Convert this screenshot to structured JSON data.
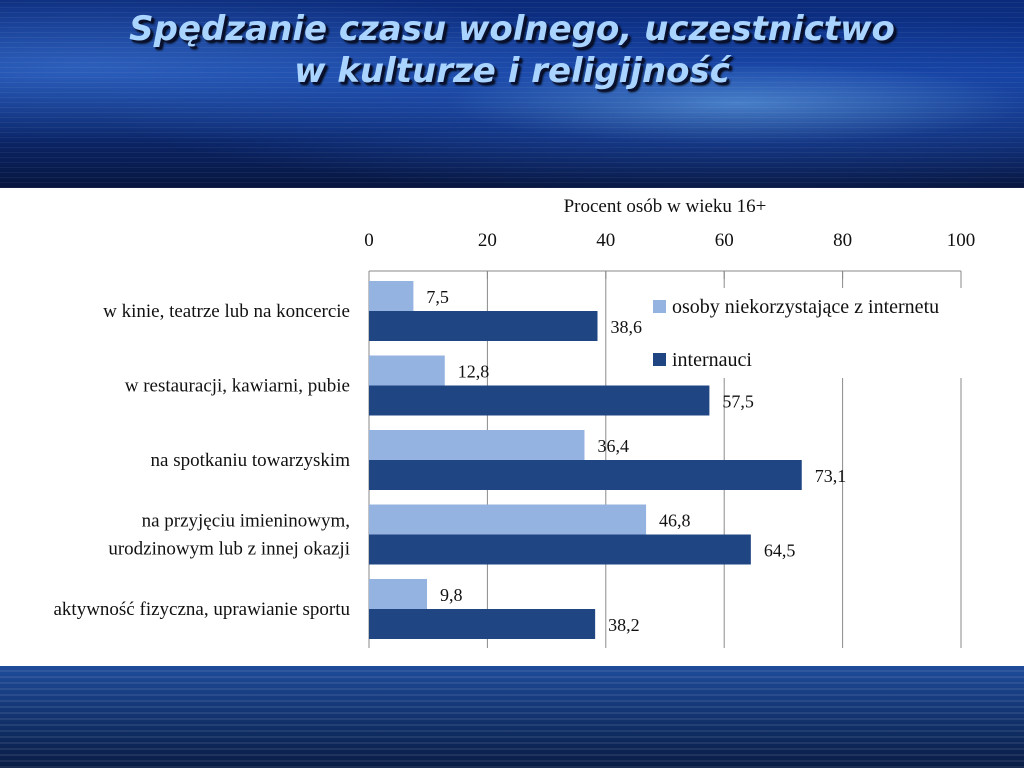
{
  "slide": {
    "title_line1": "Spędzanie czasu wolnego, uczestnictwo",
    "title_line2": "w kulturze i religijność"
  },
  "chart_data": {
    "type": "bar",
    "orientation": "horizontal",
    "title": "Procent osób w wieku 16+",
    "xlim": [
      0,
      100
    ],
    "ticks": [
      0,
      20,
      40,
      60,
      80,
      100
    ],
    "grid": true,
    "legend_position": "top-right",
    "categories": [
      [
        "w kinie, teatrze lub na koncercie"
      ],
      [
        "w restauracji, kawiarni, pubie"
      ],
      [
        "na spotkaniu towarzyskim"
      ],
      [
        "na przyjęciu imieninowym,",
        "urodzinowym lub z innej okazji"
      ],
      [
        "aktywność fizyczna, uprawianie sportu"
      ]
    ],
    "series": [
      {
        "name": "osoby niekorzystające z internetu",
        "color": "#95b3e1",
        "values": [
          7.5,
          12.8,
          36.4,
          46.8,
          9.8
        ],
        "labels": [
          "7,5",
          "12,8",
          "36,4",
          "46,8",
          "9,8"
        ]
      },
      {
        "name": "internauci",
        "color": "#1f4583",
        "values": [
          38.6,
          57.5,
          73.1,
          64.5,
          38.2
        ],
        "labels": [
          "38,6",
          "57,5",
          "73,1",
          "64,5",
          "38,2"
        ]
      }
    ]
  }
}
